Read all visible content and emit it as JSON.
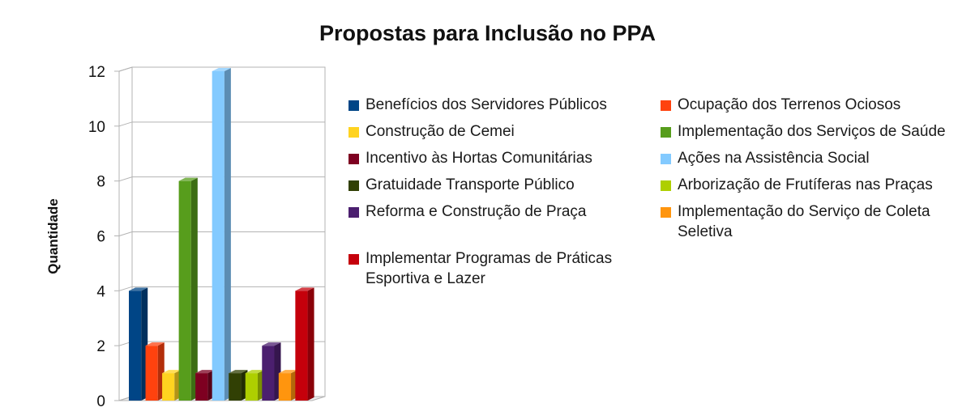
{
  "chart_data": {
    "type": "bar",
    "title": "Propostas para Inclusão no PPA",
    "xlabel": "",
    "ylabel": "Quantidade",
    "ylim": [
      0,
      12
    ],
    "yticks": [
      "0",
      "2",
      "4",
      "6",
      "8",
      "10",
      "12"
    ],
    "grid": true,
    "legend_position": "right",
    "series": [
      {
        "name": "Benefícios dos Servidores Públicos",
        "value": 4,
        "color": "#004586"
      },
      {
        "name": "Ocupação dos Terrenos Ociosos",
        "value": 2,
        "color": "#ff420e"
      },
      {
        "name": "Construção de Cemei",
        "value": 1,
        "color": "#ffd320"
      },
      {
        "name": "Implementação dos Serviços de Saúde",
        "value": 8,
        "color": "#579d1c"
      },
      {
        "name": "Incentivo às Hortas Comunitárias",
        "value": 1,
        "color": "#7e0021"
      },
      {
        "name": "Ações na Assistência Social",
        "value": 12,
        "color": "#83caff"
      },
      {
        "name": "Gratuidade Transporte Público",
        "value": 1,
        "color": "#314004"
      },
      {
        "name": "Arborização de Frutíferas nas Praças",
        "value": 1,
        "color": "#aecf00"
      },
      {
        "name": "Reforma e Construção de Praça",
        "value": 2,
        "color": "#4b1f6f"
      },
      {
        "name": "Implementação do Serviço de Coleta Seletiva",
        "value": 1,
        "color": "#ff950e"
      },
      {
        "name": "Implementar Programas de Práticas Esportiva e Lazer",
        "value": 4,
        "color": "#c5000b"
      }
    ]
  }
}
